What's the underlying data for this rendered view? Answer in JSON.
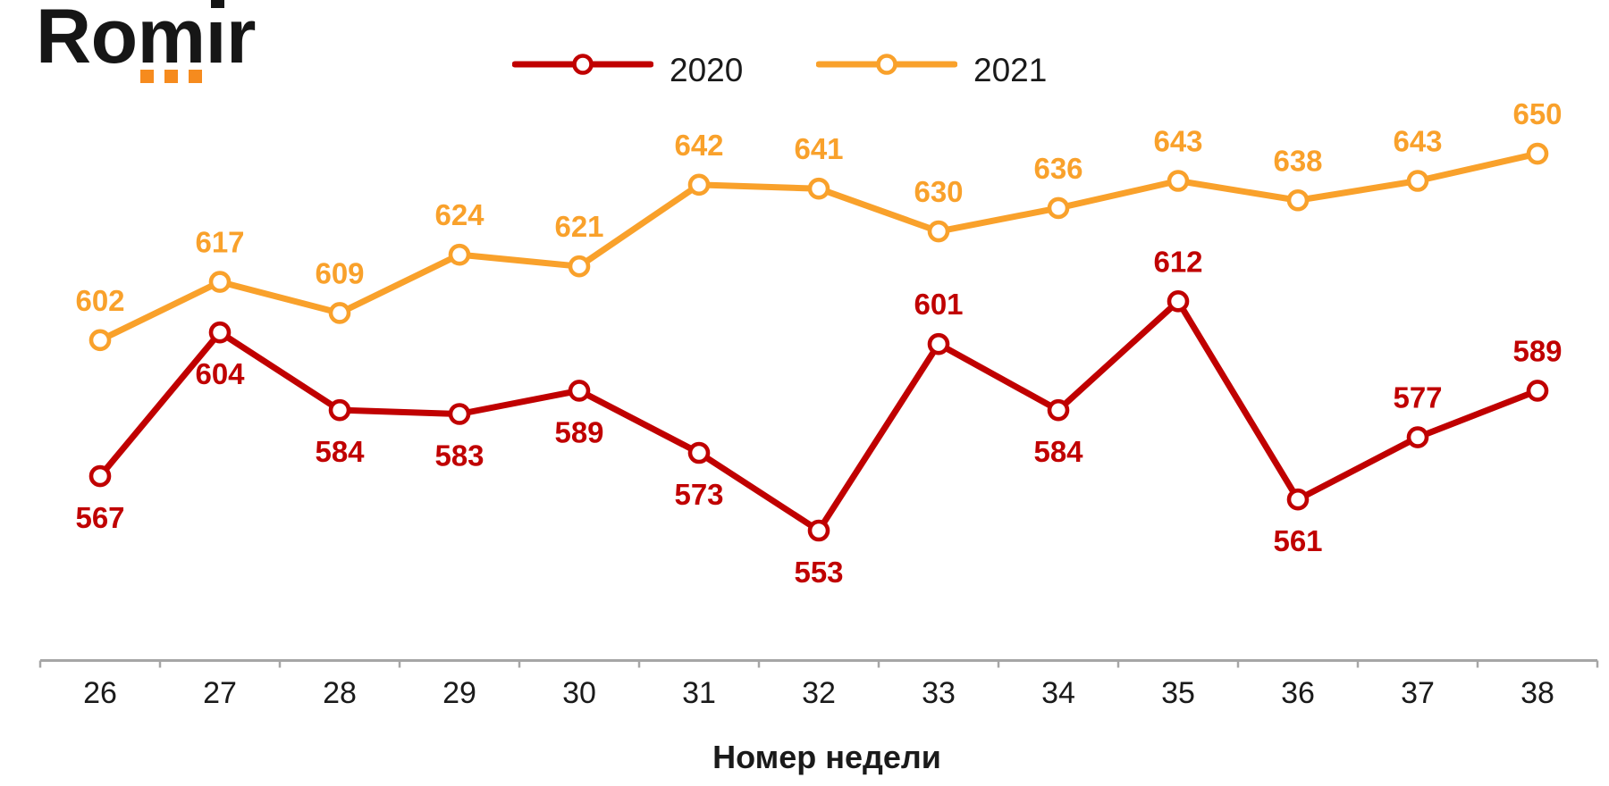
{
  "logo": {
    "text": "Romir",
    "orange": "#F68B1E",
    "black": "#161616"
  },
  "legend": {
    "entries": [
      {
        "label": "2020",
        "color": "#C00000"
      },
      {
        "label": "2021",
        "color": "#F9A12B"
      }
    ]
  },
  "chart_data": {
    "type": "line",
    "x": [
      26,
      27,
      28,
      29,
      30,
      31,
      32,
      33,
      34,
      35,
      36,
      37,
      38
    ],
    "xlabel": "Номер недели",
    "ylim": [
      540,
      665
    ],
    "grid": false,
    "legend_position": "top-center",
    "axis_color": "#A6A6A6",
    "tick_label_color": "#1a1a1a",
    "marker_style": "open-circle",
    "series": [
      {
        "name": "2020",
        "color": "#C00000",
        "values": [
          567,
          604,
          584,
          583,
          589,
          573,
          553,
          601,
          584,
          612,
          561,
          577,
          589
        ],
        "label_sides": [
          "below",
          "below",
          "below",
          "below",
          "below",
          "below",
          "below",
          "above",
          "below",
          "above",
          "below",
          "above",
          "above"
        ]
      },
      {
        "name": "2021",
        "color": "#F9A12B",
        "values": [
          602,
          617,
          609,
          624,
          621,
          642,
          641,
          630,
          636,
          643,
          638,
          643,
          650
        ],
        "label_sides": [
          "above",
          "above",
          "above",
          "above",
          "above",
          "above",
          "above",
          "above",
          "above",
          "above",
          "above",
          "above",
          "above"
        ]
      }
    ]
  }
}
